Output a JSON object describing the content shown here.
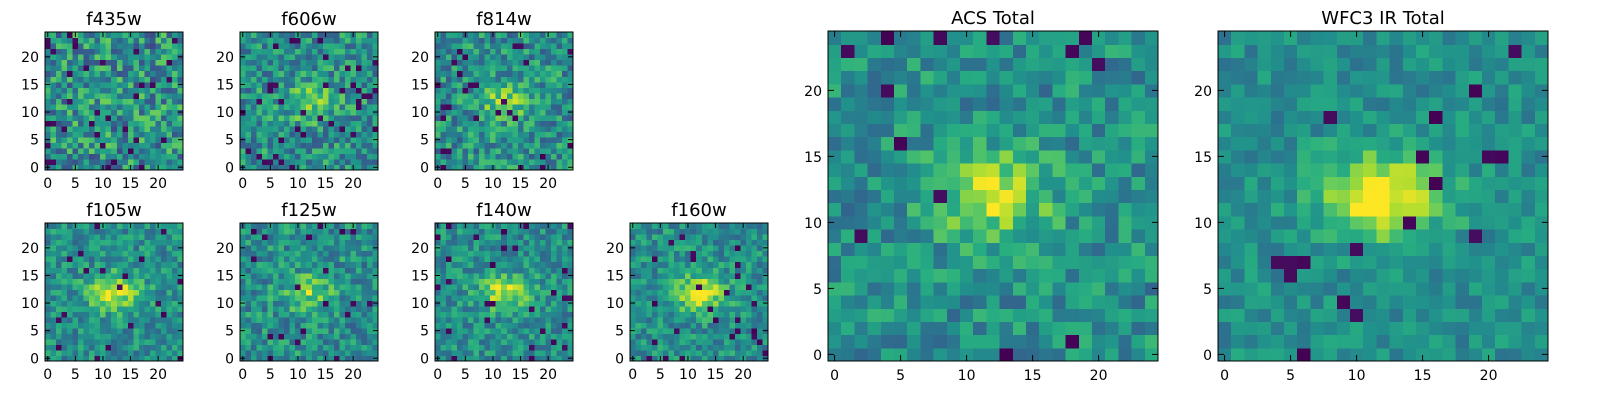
{
  "figure": {
    "colormap": "viridis",
    "colors": [
      "#440154",
      "#3b528b",
      "#21918c",
      "#5ec962",
      "#fde725"
    ]
  },
  "chart_data": [
    {
      "type": "heatmap",
      "id": "f435w",
      "title": "f435w",
      "grid_size": 25,
      "xlim": [
        0,
        24
      ],
      "ylim": [
        0,
        24
      ],
      "xticks": [
        0,
        5,
        10,
        15,
        20
      ],
      "yticks": [
        0,
        5,
        10,
        15,
        20
      ],
      "source_amplitude": 0.05,
      "noise_amplitude": 0.55,
      "dark_fraction": 0.05,
      "seed": 11
    },
    {
      "type": "heatmap",
      "id": "f606w",
      "title": "f606w",
      "grid_size": 25,
      "xlim": [
        0,
        24
      ],
      "ylim": [
        0,
        24
      ],
      "xticks": [
        0,
        5,
        10,
        15,
        20
      ],
      "yticks": [
        0,
        5,
        10,
        15,
        20
      ],
      "source_amplitude": 0.3,
      "noise_amplitude": 0.45,
      "dark_fraction": 0.05,
      "seed": 23
    },
    {
      "type": "heatmap",
      "id": "f814w",
      "title": "f814w",
      "grid_size": 25,
      "xlim": [
        0,
        24
      ],
      "ylim": [
        0,
        24
      ],
      "xticks": [
        0,
        5,
        10,
        15,
        20
      ],
      "yticks": [
        0,
        5,
        10,
        15,
        20
      ],
      "source_amplitude": 0.3,
      "noise_amplitude": 0.45,
      "dark_fraction": 0.05,
      "seed": 37
    },
    {
      "type": "heatmap",
      "id": "f105w",
      "title": "f105w",
      "grid_size": 25,
      "xlim": [
        0,
        24
      ],
      "ylim": [
        0,
        24
      ],
      "xticks": [
        0,
        5,
        10,
        15,
        20
      ],
      "yticks": [
        0,
        5,
        10,
        15,
        20
      ],
      "source_amplitude": 0.45,
      "noise_amplitude": 0.35,
      "dark_fraction": 0.04,
      "seed": 41
    },
    {
      "type": "heatmap",
      "id": "f125w",
      "title": "f125w",
      "grid_size": 25,
      "xlim": [
        0,
        24
      ],
      "ylim": [
        0,
        24
      ],
      "xticks": [
        0,
        5,
        10,
        15,
        20
      ],
      "yticks": [
        0,
        5,
        10,
        15,
        20
      ],
      "source_amplitude": 0.3,
      "noise_amplitude": 0.4,
      "dark_fraction": 0.04,
      "seed": 53
    },
    {
      "type": "heatmap",
      "id": "f140w",
      "title": "f140w",
      "grid_size": 25,
      "xlim": [
        0,
        24
      ],
      "ylim": [
        0,
        24
      ],
      "xticks": [
        0,
        5,
        10,
        15,
        20
      ],
      "yticks": [
        0,
        5,
        10,
        15,
        20
      ],
      "source_amplitude": 0.4,
      "noise_amplitude": 0.35,
      "dark_fraction": 0.04,
      "seed": 67
    },
    {
      "type": "heatmap",
      "id": "f160w",
      "title": "f160w",
      "grid_size": 25,
      "xlim": [
        0,
        24
      ],
      "ylim": [
        0,
        24
      ],
      "xticks": [
        0,
        5,
        10,
        15,
        20
      ],
      "yticks": [
        0,
        5,
        10,
        15,
        20
      ],
      "source_amplitude": 0.45,
      "noise_amplitude": 0.35,
      "dark_fraction": 0.05,
      "seed": 79
    },
    {
      "type": "heatmap",
      "id": "acs-total",
      "title": "ACS Total",
      "grid_size": 25,
      "xlim": [
        0,
        24
      ],
      "ylim": [
        0,
        24
      ],
      "xticks": [
        0,
        5,
        10,
        15,
        20
      ],
      "yticks": [
        0,
        5,
        10,
        15,
        20
      ],
      "source_amplitude": 0.4,
      "noise_amplitude": 0.35,
      "dark_fraction": 0.025,
      "seed": 97
    },
    {
      "type": "heatmap",
      "id": "wfc3-ir-total",
      "title": "WFC3 IR Total",
      "grid_size": 25,
      "xlim": [
        0,
        24
      ],
      "ylim": [
        0,
        24
      ],
      "xticks": [
        0,
        5,
        10,
        15,
        20
      ],
      "yticks": [
        0,
        5,
        10,
        15,
        20
      ],
      "source_amplitude": 0.55,
      "noise_amplitude": 0.25,
      "dark_fraction": 0.03,
      "seed": 101
    }
  ]
}
